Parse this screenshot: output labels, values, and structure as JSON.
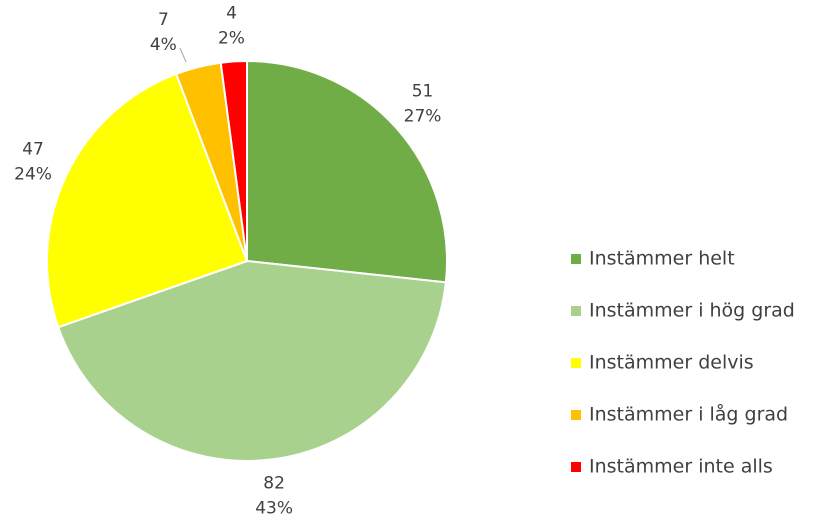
{
  "chart_data": {
    "type": "pie",
    "categories": [
      "Instämmer helt",
      "Instämmer i hög grad",
      "Instämmer delvis",
      "Instämmer i låg grad",
      "Instämmer inte alls"
    ],
    "values": [
      51,
      82,
      47,
      7,
      4
    ],
    "percent_labels": [
      "27%",
      "43%",
      "24%",
      "4%",
      "2%"
    ],
    "colors": [
      "#70ad47",
      "#a9d18e",
      "#ffff00",
      "#ffc000",
      "#ff0000"
    ],
    "legend": "right"
  }
}
